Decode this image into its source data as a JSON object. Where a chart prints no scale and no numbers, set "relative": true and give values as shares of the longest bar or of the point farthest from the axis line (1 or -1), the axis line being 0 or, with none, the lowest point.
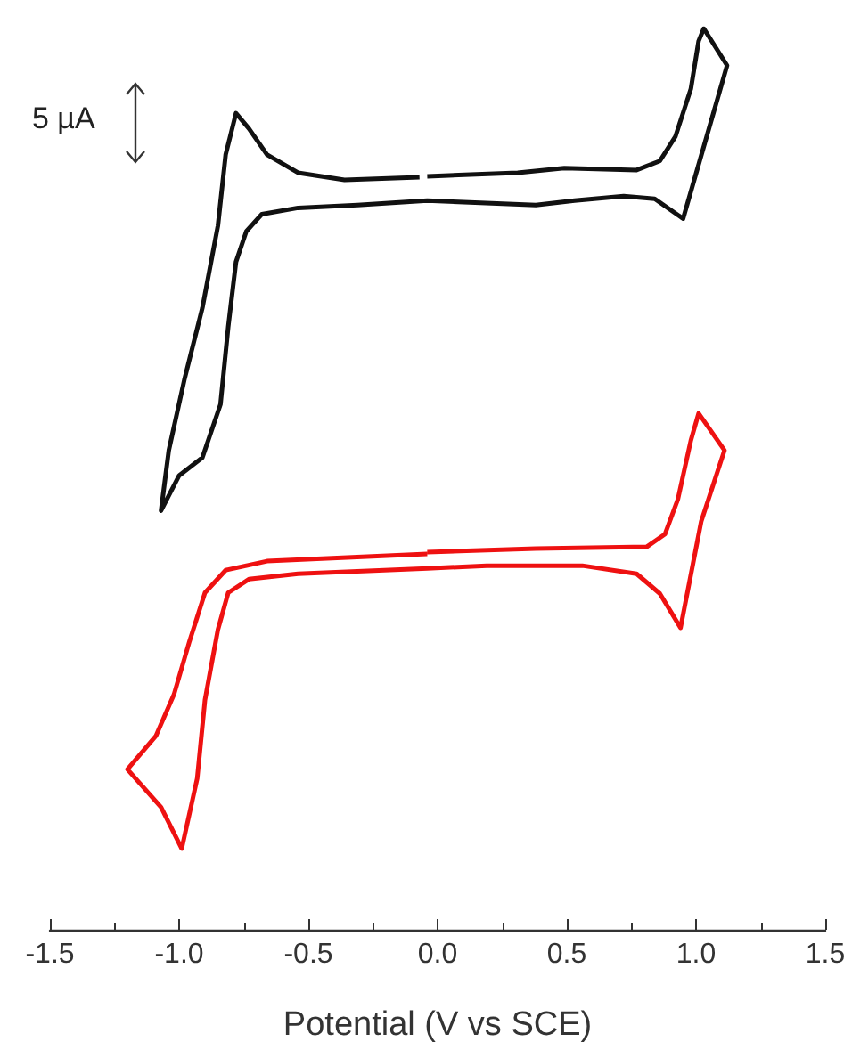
{
  "chart_data": {
    "type": "line",
    "relative": true,
    "xlabel": "Potential (V vs SCE)",
    "xlim": [
      -1.5,
      1.5
    ],
    "xticks": [
      {
        "value": -1.5,
        "label": "-1.5"
      },
      {
        "value": -1.0,
        "label": "-1.0"
      },
      {
        "value": -0.5,
        "label": "-0.5"
      },
      {
        "value": 0,
        "label": "0.0"
      },
      {
        "value": 0.5,
        "label": "0.5"
      },
      {
        "value": 1.0,
        "label": "1.0"
      },
      {
        "value": 1.5,
        "label": "1.5"
      }
    ],
    "annotations": [
      "5 µA"
    ],
    "marker": "none",
    "line_style": "solid",
    "grid": false,
    "series": [
      {
        "color": "#111111",
        "x": [
          -0.04,
          0.31,
          0.49,
          0.77,
          0.86,
          0.92,
          0.98,
          1.01,
          1.03,
          1.12,
          0.95,
          0.84,
          0.72,
          0.53,
          0.38,
          -0.04,
          -0.31,
          -0.54,
          -0.68,
          -0.74,
          -0.78,
          -0.81,
          -0.84,
          -0.91,
          -1.0,
          -1.07,
          -1.04,
          -0.98,
          -0.91,
          -0.85,
          -0.82,
          -0.78,
          -0.73,
          -0.66,
          -0.54,
          -0.36,
          -0.07
        ],
        "values": [
          0.836,
          0.84,
          0.845,
          0.843,
          0.853,
          0.88,
          0.933,
          0.986,
          1.0,
          0.959,
          0.789,
          0.811,
          0.814,
          0.809,
          0.804,
          0.809,
          0.804,
          0.801,
          0.794,
          0.775,
          0.741,
          0.669,
          0.583,
          0.524,
          0.504,
          0.465,
          0.532,
          0.61,
          0.69,
          0.781,
          0.86,
          0.906,
          0.889,
          0.86,
          0.84,
          0.832,
          0.835
        ]
      },
      {
        "color": "#ee1111",
        "x": [
          -0.04,
          0.38,
          0.81,
          0.88,
          0.93,
          0.98,
          1.01,
          1.11,
          1.02,
          0.94,
          0.86,
          0.77,
          0.56,
          0.19,
          -0.04,
          -0.54,
          -0.73,
          -0.81,
          -0.85,
          -0.9,
          -0.93,
          -0.99,
          -1.07,
          -1.2,
          -1.09,
          -1.02,
          -0.96,
          -0.9,
          -0.82,
          -0.66,
          -0.04
        ],
        "values": [
          0.419,
          0.423,
          0.425,
          0.439,
          0.478,
          0.543,
          0.573,
          0.532,
          0.453,
          0.335,
          0.373,
          0.395,
          0.404,
          0.404,
          0.401,
          0.395,
          0.389,
          0.374,
          0.333,
          0.255,
          0.168,
          0.09,
          0.136,
          0.178,
          0.215,
          0.261,
          0.32,
          0.374,
          0.399,
          0.409,
          0.417
        ]
      }
    ]
  }
}
